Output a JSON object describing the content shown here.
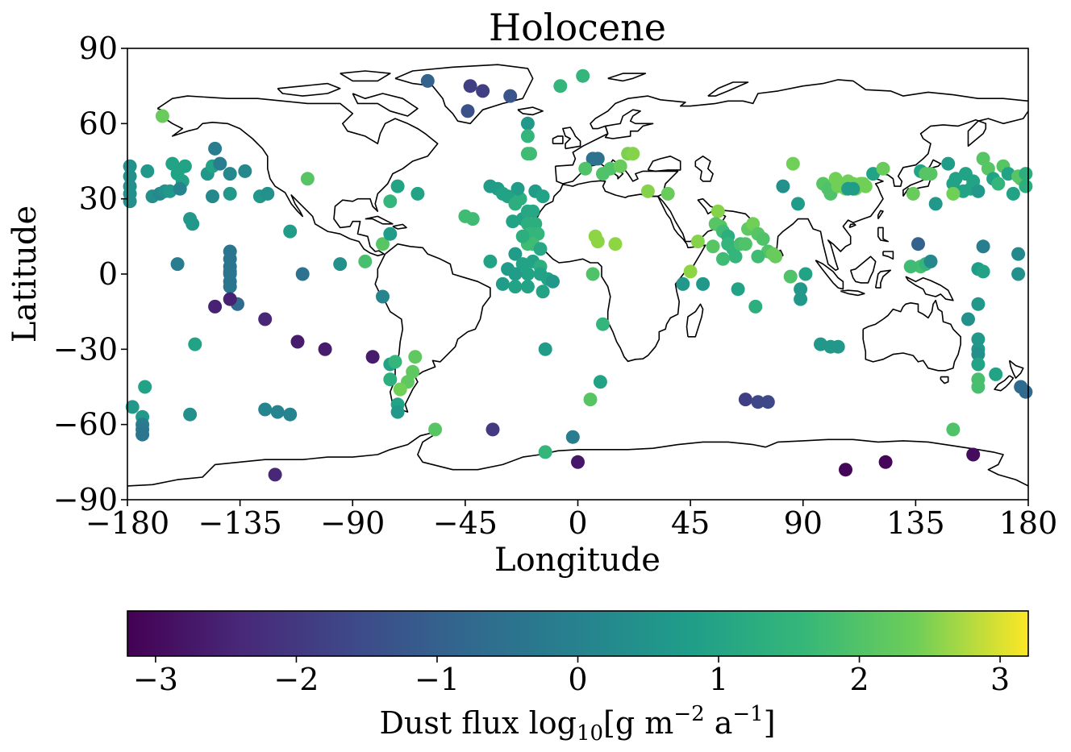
{
  "chart_data": {
    "type": "scatter",
    "title": "Holocene",
    "xlabel": "Longitude",
    "ylabel": "Latitude",
    "xlim": [
      -180,
      180
    ],
    "ylim": [
      -90,
      90
    ],
    "xticks": [
      -180,
      -135,
      -90,
      -45,
      0,
      45,
      90,
      135,
      180
    ],
    "yticks": [
      -90,
      -60,
      -30,
      0,
      30,
      60,
      90
    ],
    "xtick_labels": [
      "−180",
      "−135",
      "−90",
      "−45",
      "0",
      "45",
      "90",
      "135",
      "180"
    ],
    "ytick_labels": [
      "−90",
      "−60",
      "−30",
      "0",
      "30",
      "60",
      "90"
    ],
    "grid": false,
    "colormap": "viridis",
    "colorbar": {
      "label_main": "Dust flux log",
      "label_sub": "10",
      "label_unit": "[g m",
      "label_exp1": "−2",
      "label_mid": " a",
      "label_exp2": "−1",
      "label_end": "]",
      "range": [
        -3.2,
        3.2
      ],
      "ticks": [
        -3,
        -2,
        -1,
        0,
        1,
        2,
        3
      ],
      "tick_labels": [
        "−3",
        "−2",
        "−1",
        "0",
        "1",
        "2",
        "3"
      ],
      "orientation": "horizontal",
      "placement": "bottom"
    },
    "points": [
      [
        -179,
        43,
        0
      ],
      [
        -179,
        39,
        0
      ],
      [
        -179,
        35,
        0
      ],
      [
        -179,
        32,
        0
      ],
      [
        -179,
        29,
        0
      ],
      [
        -172,
        41,
        0.2
      ],
      [
        -170,
        31,
        0
      ],
      [
        -167,
        32,
        -0.2
      ],
      [
        -165,
        33,
        0
      ],
      [
        -163,
        33,
        0.2
      ],
      [
        -162,
        44,
        0.5
      ],
      [
        -160,
        40,
        0.5
      ],
      [
        -158,
        37,
        0.5
      ],
      [
        -157,
        43,
        0.5
      ],
      [
        -159,
        34,
        -0.3
      ],
      [
        -155,
        22,
        0.2
      ],
      [
        -154,
        20,
        0.2
      ],
      [
        -160,
        4,
        -0.5
      ],
      [
        -166,
        63,
        1.7
      ],
      [
        -148,
        40,
        0.2
      ],
      [
        -146,
        43,
        0.5
      ],
      [
        -145,
        50,
        -0.5
      ],
      [
        -143,
        44,
        -0.5
      ],
      [
        -146,
        31,
        -0.2
      ],
      [
        -139,
        40,
        -0.2
      ],
      [
        -139,
        32,
        0.2
      ],
      [
        -133,
        41,
        -0.2
      ],
      [
        -127,
        31,
        0.2
      ],
      [
        -124,
        32,
        0
      ],
      [
        -115,
        17,
        0.3
      ],
      [
        -110,
        0,
        -0.8
      ],
      [
        -108,
        38,
        1.5
      ],
      [
        -139,
        9,
        -0.7
      ],
      [
        -139,
        6,
        -0.7
      ],
      [
        -139,
        3,
        -0.7
      ],
      [
        -139,
        0,
        -0.7
      ],
      [
        -139,
        -3,
        -0.7
      ],
      [
        -139,
        -5,
        -0.7
      ],
      [
        -139,
        1,
        -0.7
      ],
      [
        -136,
        -12,
        -1
      ],
      [
        -145,
        -13,
        -2.6
      ],
      [
        -139,
        -10,
        -2.6
      ],
      [
        -125,
        -18,
        -2.5
      ],
      [
        -112,
        -27,
        -2.7
      ],
      [
        -101,
        -30,
        -2.7
      ],
      [
        -82,
        -33,
        -2.7
      ],
      [
        -153,
        -28,
        0.5
      ],
      [
        -155,
        -56,
        0
      ],
      [
        -173,
        -45,
        0.5
      ],
      [
        -174,
        -57,
        0.2
      ],
      [
        -174,
        -60,
        -0.5
      ],
      [
        -174,
        -62,
        -0.6
      ],
      [
        -174,
        -64,
        -0.7
      ],
      [
        -178,
        -53,
        0.2
      ],
      [
        -125,
        -54,
        -0.3
      ],
      [
        -120,
        -55,
        -0.3
      ],
      [
        -115,
        -56,
        -0.3
      ],
      [
        -121,
        -80,
        -2.5
      ],
      [
        -95,
        4,
        0
      ],
      [
        -85,
        5,
        1.3
      ],
      [
        -78,
        12,
        1.5
      ],
      [
        -75,
        16,
        0.3
      ],
      [
        -75,
        29,
        1.0
      ],
      [
        -72,
        35,
        0.5
      ],
      [
        -64,
        32,
        0.5
      ],
      [
        -78,
        -9,
        -0.3
      ],
      [
        -75,
        -36,
        0.5
      ],
      [
        -73,
        -35,
        1.0
      ],
      [
        -75,
        -42,
        0.8
      ],
      [
        -65,
        -33,
        1.6
      ],
      [
        -66,
        -39,
        1.6
      ],
      [
        -68,
        -43,
        1.6
      ],
      [
        -71,
        -46,
        1.8
      ],
      [
        -72,
        -52,
        0.5
      ],
      [
        -72,
        -55,
        0.2
      ],
      [
        -57,
        -62,
        1.5
      ],
      [
        -34,
        -62,
        -2.1
      ],
      [
        -13,
        -71,
        1.0
      ],
      [
        -2,
        -65,
        -0.5
      ],
      [
        0,
        -75,
        -2.8
      ],
      [
        -60,
        77,
        -1.2
      ],
      [
        -43,
        75,
        -2
      ],
      [
        -38,
        73,
        -2
      ],
      [
        -44,
        65,
        -1.6
      ],
      [
        -27,
        71,
        -1.5
      ],
      [
        -20,
        60,
        0.2
      ],
      [
        -20,
        55,
        1.0
      ],
      [
        -20,
        48,
        1.2
      ],
      [
        -19,
        48,
        1.2
      ],
      [
        -7,
        75,
        1.0
      ],
      [
        2,
        79,
        1.0
      ],
      [
        -35,
        35,
        0.3
      ],
      [
        -32,
        34,
        0.3
      ],
      [
        -45,
        23,
        1.2
      ],
      [
        -42,
        22,
        1.2
      ],
      [
        -30,
        32,
        0.5
      ],
      [
        -28,
        31,
        0.5
      ],
      [
        -25,
        28,
        0.8
      ],
      [
        -23,
        30,
        0.8
      ],
      [
        -26,
        21,
        0.5
      ],
      [
        -22,
        22,
        0.5
      ],
      [
        -20,
        25,
        0.6
      ],
      [
        -18,
        25,
        0.6
      ],
      [
        -20,
        20,
        0.8
      ],
      [
        -17,
        20,
        0.8
      ],
      [
        -19,
        16,
        1.0
      ],
      [
        -16,
        16,
        1.0
      ],
      [
        -20,
        12,
        1.2
      ],
      [
        -18,
        12,
        1.2
      ],
      [
        -22,
        15,
        0.8
      ],
      [
        -15,
        10,
        0.6
      ],
      [
        -25,
        8,
        0.3
      ],
      [
        -22,
        4,
        0.5
      ],
      [
        -18,
        5,
        0.5
      ],
      [
        -15,
        3,
        0.8
      ],
      [
        -20,
        0,
        0.5
      ],
      [
        -15,
        0,
        0.5
      ],
      [
        -12,
        -2,
        0.5
      ],
      [
        -10,
        -3,
        0.2
      ],
      [
        -28,
        2,
        0.3
      ],
      [
        -25,
        0,
        0.3
      ],
      [
        -35,
        5,
        0.5
      ],
      [
        -25,
        -5,
        0.5
      ],
      [
        -20,
        -5,
        0.5
      ],
      [
        -14,
        -7,
        0.5
      ],
      [
        -30,
        -4,
        0.3
      ],
      [
        -17,
        33,
        0.3
      ],
      [
        -14,
        31,
        0.5
      ],
      [
        -24,
        34,
        0.3
      ],
      [
        -13,
        -30,
        0.3
      ],
      [
        5,
        -50,
        1.5
      ],
      [
        9,
        -43,
        0.5
      ],
      [
        10,
        -20,
        1.0
      ],
      [
        6,
        46,
        -0.8
      ],
      [
        8,
        46,
        -0.8
      ],
      [
        10,
        40,
        1.4
      ],
      [
        3,
        42,
        1.4
      ],
      [
        13,
        42,
        1.4
      ],
      [
        17,
        43,
        1.7
      ],
      [
        20,
        48,
        1.9
      ],
      [
        22,
        48,
        2.0
      ],
      [
        28,
        33,
        2.0
      ],
      [
        36,
        32,
        1.7
      ],
      [
        7,
        15,
        2.1
      ],
      [
        8,
        13,
        2.1
      ],
      [
        15,
        12,
        2.1
      ],
      [
        6,
        0,
        1.4
      ],
      [
        42,
        -4,
        0.2
      ],
      [
        45,
        1,
        2.1
      ],
      [
        48,
        13,
        2.0
      ],
      [
        50,
        -4,
        0.2
      ],
      [
        56,
        25,
        2.0
      ],
      [
        55,
        20,
        1.5
      ],
      [
        57,
        19,
        1.5
      ],
      [
        58,
        17,
        1.2
      ],
      [
        60,
        15,
        0.8
      ],
      [
        60,
        12,
        1.0
      ],
      [
        62,
        10,
        1.0
      ],
      [
        63,
        7,
        1.0
      ],
      [
        65,
        12,
        1.3
      ],
      [
        68,
        18,
        1.6
      ],
      [
        70,
        20,
        1.8
      ],
      [
        72,
        16,
        1.5
      ],
      [
        67,
        12,
        1.4
      ],
      [
        74,
        14,
        1.4
      ],
      [
        76,
        9,
        1.4
      ],
      [
        78,
        8,
        1.7
      ],
      [
        79,
        7,
        1.7
      ],
      [
        72,
        7,
        1.2
      ],
      [
        71,
        -13,
        0.8
      ],
      [
        64,
        -6,
        0.5
      ],
      [
        54,
        11,
        1.5
      ],
      [
        58,
        6,
        1.2
      ],
      [
        85,
        -1,
        1.4
      ],
      [
        89,
        -10,
        0.2
      ],
      [
        89,
        -6,
        0.2
      ],
      [
        91,
        0,
        0.5
      ],
      [
        82,
        35,
        0
      ],
      [
        86,
        44,
        1.8
      ],
      [
        88,
        28,
        0.3
      ],
      [
        97,
        -28,
        0.2
      ],
      [
        101,
        -29,
        0.2
      ],
      [
        104,
        -29,
        0.2
      ],
      [
        98,
        36,
        1.5
      ],
      [
        100,
        34,
        1.4
      ],
      [
        101,
        32,
        1.4
      ],
      [
        103,
        38,
        1.8
      ],
      [
        104,
        35,
        1.8
      ],
      [
        105,
        36,
        1.8
      ],
      [
        106,
        36,
        1.8
      ],
      [
        107,
        34,
        1.8
      ],
      [
        108,
        37,
        1.8
      ],
      [
        109,
        35,
        1.8
      ],
      [
        110,
        36,
        1.8
      ],
      [
        111,
        34,
        1.8
      ],
      [
        112,
        35,
        1.8
      ],
      [
        113,
        36,
        1.8
      ],
      [
        114,
        36,
        1.8
      ],
      [
        115,
        35,
        1.8
      ],
      [
        110,
        34,
        0.3
      ],
      [
        108,
        34,
        0.3
      ],
      [
        118,
        40,
        0.5
      ],
      [
        122,
        42,
        1.7
      ],
      [
        134,
        32,
        1.7
      ],
      [
        137,
        41,
        0.5
      ],
      [
        139,
        40,
        1.5
      ],
      [
        141,
        40,
        1.5
      ],
      [
        143,
        28,
        0.2
      ],
      [
        136,
        12,
        -1.2
      ],
      [
        137,
        3,
        1.3
      ],
      [
        139,
        4,
        1.0
      ],
      [
        141,
        5,
        -0.2
      ],
      [
        133,
        3,
        1.2
      ],
      [
        148,
        44,
        0.3
      ],
      [
        150,
        36,
        0.5
      ],
      [
        151,
        38,
        0.5
      ],
      [
        154,
        33,
        0.5
      ],
      [
        155,
        40,
        0.5
      ],
      [
        157,
        34,
        0.5
      ],
      [
        158,
        37,
        0.5
      ],
      [
        160,
        33,
        0.2
      ],
      [
        162,
        46,
        1.5
      ],
      [
        164,
        42,
        1.5
      ],
      [
        166,
        38,
        0.5
      ],
      [
        168,
        36,
        1.0
      ],
      [
        170,
        43,
        1.5
      ],
      [
        172,
        40,
        0.5
      ],
      [
        174,
        32,
        0.5
      ],
      [
        176,
        39,
        1.5
      ],
      [
        177,
        38,
        1.5
      ],
      [
        179,
        35,
        0.8
      ],
      [
        179,
        40,
        0.8
      ],
      [
        150,
        32,
        1.8
      ],
      [
        160,
        2,
        0.3
      ],
      [
        162,
        1,
        0.5
      ],
      [
        162,
        11,
        -0.5
      ],
      [
        160,
        -12,
        0.2
      ],
      [
        160,
        -26,
        0.2
      ],
      [
        160,
        -30,
        0.2
      ],
      [
        160,
        -32,
        0
      ],
      [
        160,
        -36,
        0.5
      ],
      [
        160,
        -42,
        1.3
      ],
      [
        160,
        -45,
        1.3
      ],
      [
        156,
        -18,
        0
      ],
      [
        167,
        -40,
        0.5
      ],
      [
        177,
        -45,
        -1.0
      ],
      [
        179,
        -47,
        -1.0
      ],
      [
        176,
        8,
        -0.2
      ],
      [
        176,
        0,
        0
      ],
      [
        150,
        -62,
        1.4
      ],
      [
        158,
        -72,
        -3.0
      ],
      [
        67,
        -50,
        -2.0
      ],
      [
        72,
        -51,
        -1.8
      ],
      [
        76,
        -51,
        -1.8
      ],
      [
        107,
        -78,
        -3.1
      ],
      [
        123,
        -75,
        -3.1
      ]
    ]
  }
}
